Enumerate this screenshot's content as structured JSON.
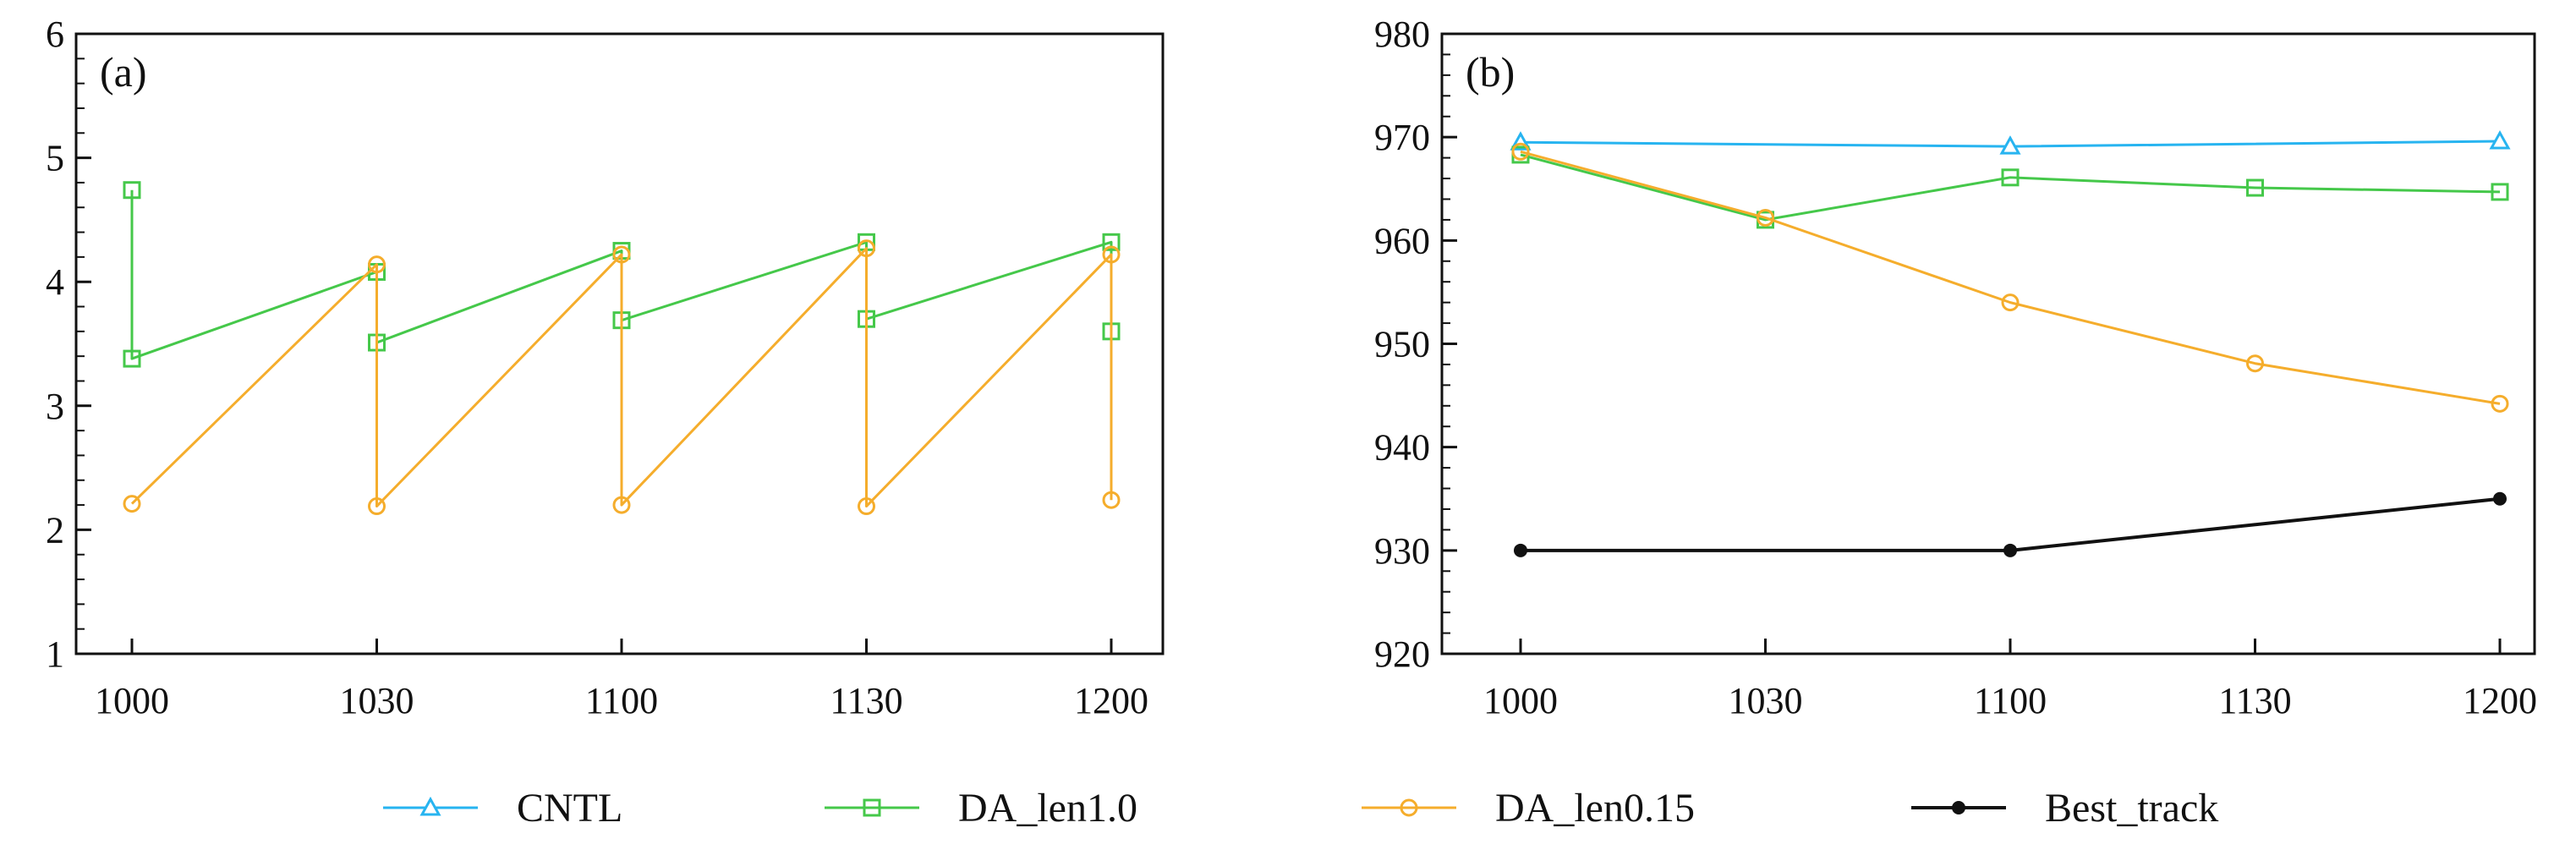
{
  "legend": [
    {
      "name": "CNTL",
      "color": "#27b4f0",
      "marker": "triangle-open"
    },
    {
      "name": "DA_len1.0",
      "color": "#45c84a",
      "marker": "square-open"
    },
    {
      "name": "DA_len0.15",
      "color": "#f5ad2c",
      "marker": "circle-open"
    },
    {
      "name": "Best_track",
      "color": "#111111",
      "marker": "circle-filled"
    }
  ],
  "chart_data": [
    {
      "type": "line",
      "panel_label": "(a)",
      "xlabel": "",
      "ylabel": "",
      "categories": [
        "1000",
        "1030",
        "1100",
        "1130",
        "1200"
      ],
      "ylim": [
        1,
        6
      ],
      "yticks": [
        "1",
        "2",
        "3",
        "4",
        "5",
        "6"
      ],
      "series": [
        {
          "name": "DA_len1.0",
          "points": [
            [
              0,
              4.74
            ],
            [
              0,
              3.38
            ],
            [
              1,
              4.08
            ],
            [
              1,
              3.51
            ],
            [
              2,
              4.25
            ],
            [
              2,
              3.69
            ],
            [
              3,
              4.32
            ],
            [
              3,
              3.7
            ],
            [
              4,
              4.32
            ],
            [
              4,
              3.6
            ]
          ]
        },
        {
          "name": "DA_len0.15",
          "points": [
            [
              0,
              2.21
            ],
            [
              1,
              4.14
            ],
            [
              1,
              2.19
            ],
            [
              2,
              4.22
            ],
            [
              2,
              2.2
            ],
            [
              3,
              4.27
            ],
            [
              3,
              2.19
            ],
            [
              4,
              4.22
            ],
            [
              4,
              2.24
            ]
          ]
        }
      ]
    },
    {
      "type": "line",
      "panel_label": "(b)",
      "xlabel": "",
      "ylabel": "",
      "categories": [
        "1000",
        "1030",
        "1100",
        "1130",
        "1200"
      ],
      "ylim": [
        920,
        980
      ],
      "yticks": [
        "920",
        "930",
        "940",
        "950",
        "960",
        "970",
        "980"
      ],
      "series": [
        {
          "name": "CNTL",
          "points": [
            [
              0,
              969.5
            ],
            [
              2,
              969.1
            ],
            [
              4,
              969.6
            ]
          ]
        },
        {
          "name": "DA_len1.0",
          "points": [
            [
              0,
              968.3
            ],
            [
              1,
              962.0
            ],
            [
              2,
              966.1
            ],
            [
              3,
              965.1
            ],
            [
              4,
              964.7
            ]
          ]
        },
        {
          "name": "DA_len0.15",
          "points": [
            [
              0,
              968.6
            ],
            [
              1,
              962.2
            ],
            [
              2,
              954.0
            ],
            [
              3,
              948.1
            ],
            [
              4,
              944.2
            ]
          ]
        },
        {
          "name": "Best_track",
          "points": [
            [
              0,
              930.0
            ],
            [
              2,
              930.0
            ],
            [
              4,
              935.0
            ]
          ]
        }
      ]
    }
  ]
}
